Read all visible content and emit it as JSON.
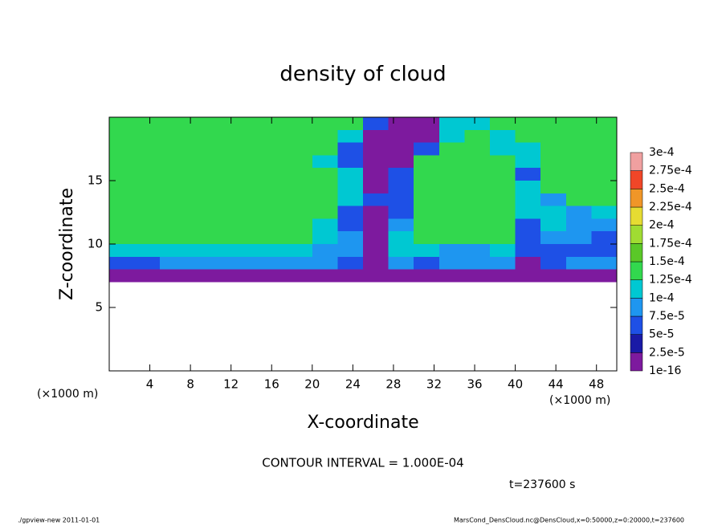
{
  "chart_data": {
    "type": "heatmap",
    "title": "density of cloud",
    "xlabel": "X-coordinate",
    "ylabel": "Z-coordinate",
    "x_unit": "(×1000 m)",
    "y_unit": "(×1000 m)",
    "xlim": [
      0,
      50
    ],
    "ylim": [
      0,
      20
    ],
    "xticks": [
      4,
      8,
      12,
      16,
      20,
      24,
      28,
      32,
      36,
      40,
      44,
      48
    ],
    "yticks": [
      5,
      10,
      15
    ],
    "x": [
      1.25,
      3.75,
      6.25,
      8.75,
      11.25,
      13.75,
      16.25,
      18.75,
      21.25,
      23.75,
      26.25,
      28.75,
      31.25,
      33.75,
      36.25,
      38.75,
      41.25,
      43.75,
      46.25,
      48.75
    ],
    "y": [
      19.5,
      18.5,
      17.5,
      16.5,
      15.5,
      14.5,
      13.5,
      12.5,
      11.5,
      10.5,
      9.5,
      8.5,
      7.5,
      6.5,
      5.5,
      4.5,
      3.5,
      2.5,
      1.5,
      0.5
    ],
    "z": [
      [
        0.00014,
        0.00014,
        0.00014,
        0.00014,
        0.00014,
        0.00014,
        0.00014,
        0.00014,
        0.00014,
        0.00014,
        6e-05,
        1e-05,
        1e-05,
        0.00011,
        0.00011,
        0.00014,
        0.00014,
        0.00014,
        0.00014,
        0.00014
      ],
      [
        0.00014,
        0.00014,
        0.00014,
        0.00014,
        0.00014,
        0.00014,
        0.00014,
        0.00014,
        0.00014,
        0.00011,
        1e-05,
        1e-05,
        1e-05,
        0.00011,
        0.00014,
        0.00011,
        0.00014,
        0.00014,
        0.00014,
        0.00014
      ],
      [
        0.00014,
        0.00014,
        0.00014,
        0.00014,
        0.00014,
        0.00014,
        0.00014,
        0.00014,
        0.00014,
        6e-05,
        1e-05,
        1e-05,
        6e-05,
        0.00014,
        0.00014,
        0.00011,
        0.00011,
        0.00014,
        0.00014,
        0.00014
      ],
      [
        0.00014,
        0.00014,
        0.00014,
        0.00014,
        0.00014,
        0.00014,
        0.00014,
        0.00014,
        0.00011,
        6e-05,
        1e-05,
        1e-05,
        0.00014,
        0.00014,
        0.00014,
        0.00014,
        0.00011,
        0.00014,
        0.00014,
        0.00014
      ],
      [
        0.00014,
        0.00014,
        0.00014,
        0.00014,
        0.00014,
        0.00014,
        0.00014,
        0.00014,
        0.00014,
        0.00011,
        1e-05,
        6e-05,
        0.00014,
        0.00014,
        0.00014,
        0.00014,
        6e-05,
        0.00014,
        0.00014,
        0.00014
      ],
      [
        0.00014,
        0.00014,
        0.00014,
        0.00014,
        0.00014,
        0.00014,
        0.00014,
        0.00014,
        0.00014,
        0.00011,
        1e-05,
        6e-05,
        0.00014,
        0.00014,
        0.00014,
        0.00014,
        0.00011,
        0.00014,
        0.00014,
        0.00014
      ],
      [
        0.00014,
        0.00014,
        0.00014,
        0.00014,
        0.00014,
        0.00014,
        0.00014,
        0.00014,
        0.00014,
        0.00011,
        6e-05,
        6e-05,
        0.00014,
        0.00014,
        0.00014,
        0.00014,
        0.00011,
        9e-05,
        0.00014,
        0.00014
      ],
      [
        0.00014,
        0.00014,
        0.00014,
        0.00014,
        0.00014,
        0.00014,
        0.00014,
        0.00014,
        0.00014,
        6e-05,
        1e-05,
        6e-05,
        0.00014,
        0.00014,
        0.00014,
        0.00014,
        0.00011,
        0.00011,
        9e-05,
        0.00011
      ],
      [
        0.00014,
        0.00014,
        0.00014,
        0.00014,
        0.00014,
        0.00014,
        0.00014,
        0.00014,
        0.00011,
        6e-05,
        1e-05,
        9e-05,
        0.00014,
        0.00014,
        0.00014,
        0.00014,
        6e-05,
        0.00011,
        9e-05,
        9e-05
      ],
      [
        0.00014,
        0.00014,
        0.00014,
        0.00014,
        0.00014,
        0.00014,
        0.00014,
        0.00014,
        0.00011,
        9e-05,
        1e-05,
        0.00011,
        0.00014,
        0.00014,
        0.00014,
        0.00014,
        6e-05,
        9e-05,
        9e-05,
        6e-05
      ],
      [
        0.00011,
        0.00011,
        0.00011,
        0.00011,
        0.00011,
        0.00011,
        0.00011,
        0.00011,
        9e-05,
        9e-05,
        1e-05,
        0.00011,
        0.00011,
        9e-05,
        9e-05,
        0.00011,
        6e-05,
        6e-05,
        6e-05,
        6e-05
      ],
      [
        6e-05,
        6e-05,
        9e-05,
        9e-05,
        9e-05,
        9e-05,
        9e-05,
        9e-05,
        9e-05,
        6e-05,
        1e-05,
        9e-05,
        6e-05,
        9e-05,
        9e-05,
        9e-05,
        1e-05,
        6e-05,
        9e-05,
        9e-05
      ],
      [
        1e-05,
        1e-05,
        1e-05,
        1e-05,
        1e-05,
        1e-05,
        1e-05,
        1e-05,
        1e-05,
        1e-05,
        1e-05,
        1e-05,
        1e-05,
        1e-05,
        1e-05,
        1e-05,
        1e-05,
        1e-05,
        1e-05,
        1e-05
      ],
      [
        0,
        0,
        0,
        0,
        0,
        0,
        0,
        0,
        0,
        0,
        0,
        0,
        0,
        0,
        0,
        0,
        0,
        0,
        0,
        0
      ],
      [
        0,
        0,
        0,
        0,
        0,
        0,
        0,
        0,
        0,
        0,
        0,
        0,
        0,
        0,
        0,
        0,
        0,
        0,
        0,
        0
      ],
      [
        0,
        0,
        0,
        0,
        0,
        0,
        0,
        0,
        0,
        0,
        0,
        0,
        0,
        0,
        0,
        0,
        0,
        0,
        0,
        0
      ],
      [
        0,
        0,
        0,
        0,
        0,
        0,
        0,
        0,
        0,
        0,
        0,
        0,
        0,
        0,
        0,
        0,
        0,
        0,
        0,
        0
      ],
      [
        0,
        0,
        0,
        0,
        0,
        0,
        0,
        0,
        0,
        0,
        0,
        0,
        0,
        0,
        0,
        0,
        0,
        0,
        0,
        0
      ],
      [
        0,
        0,
        0,
        0,
        0,
        0,
        0,
        0,
        0,
        0,
        0,
        0,
        0,
        0,
        0,
        0,
        0,
        0,
        0,
        0
      ],
      [
        0,
        0,
        0,
        0,
        0,
        0,
        0,
        0,
        0,
        0,
        0,
        0,
        0,
        0,
        0,
        0,
        0,
        0,
        0,
        0
      ]
    ],
    "colorbar": {
      "levels": [
        1e-16,
        {
          "value": 2.5e-05,
          "label": "2.5e-5"
        },
        {
          "value": 5e-05,
          "label": "5e-5"
        },
        {
          "value": 7.5e-05,
          "label": "7.5e-5"
        },
        {
          "value": 0.0001,
          "label": "1e-4"
        },
        {
          "value": 0.000125,
          "label": "1.25e-4"
        },
        {
          "value": 0.00015,
          "label": "1.5e-4"
        },
        {
          "value": 0.000175,
          "label": "1.75e-4"
        },
        {
          "value": 0.0002,
          "label": "2e-4"
        },
        {
          "value": 0.000225,
          "label": "2.25e-4"
        },
        {
          "value": 0.00025,
          "label": "2.5e-4"
        },
        {
          "value": 0.000275,
          "label": "2.75e-4"
        },
        {
          "value": 0.0003,
          "label": "3e-4"
        }
      ],
      "colors": [
        "#7d1a9e",
        "#1a1aa6",
        "#1e50e6",
        "#1e96f0",
        "#00c8d2",
        "#32d84e",
        "#5ac828",
        "#a0dc32",
        "#e6dc32",
        "#f09628",
        "#f04628",
        "#f0a0a0"
      ]
    },
    "annotations": {
      "contour_interval": "CONTOUR INTERVAL = 1.000E-04",
      "time": "t=237600 s",
      "footer_left": "./gpview-new  2011-01-01",
      "footer_right": "MarsCond_DensCloud.nc@DensCloud,x=0:50000,z=0:20000,t=237600"
    }
  }
}
